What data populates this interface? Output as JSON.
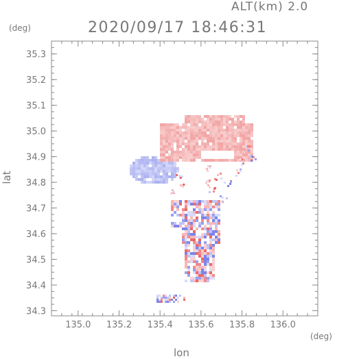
{
  "header": {
    "altitude_label": "ALT(km) 2.0",
    "timestamp": "2020/09/17 18:46:31"
  },
  "axes": {
    "x_unit": "(deg)",
    "y_unit": "(deg)",
    "x_label": "lon",
    "y_label": "lat"
  },
  "chart_data": {
    "type": "heatmap",
    "title": "2020/09/17 18:46:31",
    "subtitle": "ALT(km) 2.0",
    "xlabel": "lon",
    "ylabel": "lat",
    "xlim": [
      134.87,
      136.17
    ],
    "ylim": [
      34.28,
      35.35
    ],
    "x_ticks": [
      "135.0",
      "135.2",
      "135.4",
      "135.6",
      "135.8",
      "136.0"
    ],
    "x_tick_values": [
      135.0,
      135.2,
      135.4,
      135.6,
      135.8,
      136.0
    ],
    "y_ticks": [
      "34.3",
      "34.4",
      "34.5",
      "34.6",
      "34.7",
      "34.8",
      "34.9",
      "35.0",
      "35.1",
      "35.2",
      "35.3"
    ],
    "y_tick_values": [
      34.3,
      34.4,
      34.5,
      34.6,
      34.7,
      34.8,
      34.9,
      35.0,
      35.1,
      35.2,
      35.3
    ],
    "grid": false,
    "colors": {
      "positive": "#f4a0a0",
      "negative": "#a8acf0",
      "axis": "#888888"
    },
    "regions": [
      {
        "name": "northern-positive-area",
        "lon": [
          135.44,
          135.84
        ],
        "lat": [
          34.9,
          35.0
        ],
        "sign": "positive"
      },
      {
        "name": "western-negative-area",
        "lon": [
          135.27,
          135.44
        ],
        "lat": [
          34.8,
          34.9
        ],
        "sign": "negative"
      },
      {
        "name": "central-mixed-area",
        "lon": [
          135.46,
          135.67
        ],
        "lat": [
          34.38,
          34.72
        ],
        "sign": "mixed"
      },
      {
        "name": "southern-negative-strip",
        "lon": [
          135.34,
          135.48
        ],
        "lat": [
          34.33,
          34.35
        ],
        "sign": "negative"
      }
    ]
  }
}
